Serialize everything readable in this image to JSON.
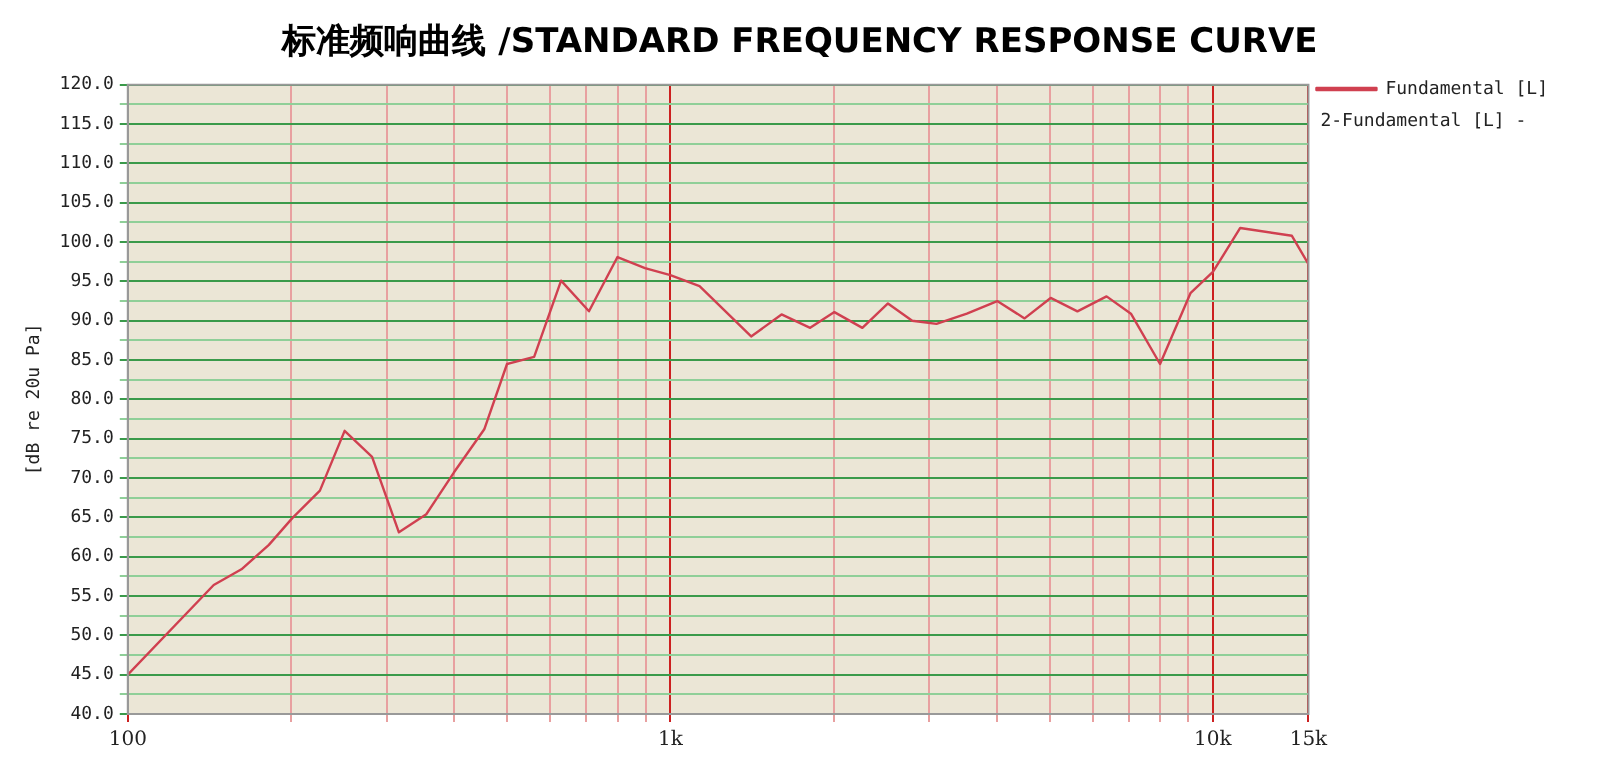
{
  "chart_data": {
    "type": "line",
    "title": "标准频响曲线 /STANDARD FREQUENCY RESPONSE CURVE",
    "ylabel": "[dB re 20u Pa]",
    "annotations": [
      "2-Fundamental [L] -"
    ],
    "log": "x",
    "grid": true,
    "legend": "top right",
    "marker": "none",
    "line_style": "solid",
    "xlim": [
      100,
      15000
    ],
    "xticks": [
      {
        "value": 100,
        "label": "100"
      },
      {
        "value": 200,
        "label": null
      },
      {
        "value": 300,
        "label": null
      },
      {
        "value": 400,
        "label": null
      },
      {
        "value": 500,
        "label": null
      },
      {
        "value": 600,
        "label": null
      },
      {
        "value": 700,
        "label": null
      },
      {
        "value": 800,
        "label": null
      },
      {
        "value": 900,
        "label": null
      },
      {
        "value": 1000,
        "label": "1k"
      },
      {
        "value": 2000,
        "label": null
      },
      {
        "value": 3000,
        "label": null
      },
      {
        "value": 4000,
        "label": null
      },
      {
        "value": 5000,
        "label": null
      },
      {
        "value": 6000,
        "label": null
      },
      {
        "value": 7000,
        "label": null
      },
      {
        "value": 8000,
        "label": null
      },
      {
        "value": 9000,
        "label": null
      },
      {
        "value": 10000,
        "label": "10k"
      },
      {
        "value": 15000,
        "label": "15k"
      }
    ],
    "ylim": [
      40,
      120
    ],
    "yticks": [
      {
        "value": 40,
        "label": "40.0"
      },
      {
        "value": 42.5,
        "label": null
      },
      {
        "value": 45,
        "label": "45.0"
      },
      {
        "value": 47.5,
        "label": null
      },
      {
        "value": 50,
        "label": "50.0"
      },
      {
        "value": 52.5,
        "label": null
      },
      {
        "value": 55,
        "label": "55.0"
      },
      {
        "value": 57.5,
        "label": null
      },
      {
        "value": 60,
        "label": "60.0"
      },
      {
        "value": 62.5,
        "label": null
      },
      {
        "value": 65,
        "label": "65.0"
      },
      {
        "value": 67.5,
        "label": null
      },
      {
        "value": 70,
        "label": "70.0"
      },
      {
        "value": 72.5,
        "label": null
      },
      {
        "value": 75,
        "label": "75.0"
      },
      {
        "value": 77.5,
        "label": null
      },
      {
        "value": 80,
        "label": "80.0"
      },
      {
        "value": 82.5,
        "label": null
      },
      {
        "value": 85,
        "label": "85.0"
      },
      {
        "value": 87.5,
        "label": null
      },
      {
        "value": 90,
        "label": "90.0"
      },
      {
        "value": 92.5,
        "label": null
      },
      {
        "value": 95,
        "label": "95.0"
      },
      {
        "value": 97.5,
        "label": null
      },
      {
        "value": 100,
        "label": "100.0"
      },
      {
        "value": 102.5,
        "label": null
      },
      {
        "value": 105,
        "label": "105.0"
      },
      {
        "value": 107.5,
        "label": null
      },
      {
        "value": 110,
        "label": "110.0"
      },
      {
        "value": 112.5,
        "label": null
      },
      {
        "value": 115,
        "label": "115.0"
      },
      {
        "value": 117.5,
        "label": null
      },
      {
        "value": 120,
        "label": "120.0"
      }
    ],
    "x": [
      100,
      144,
      162,
      182,
      201,
      226,
      251,
      282,
      316,
      355,
      399,
      454,
      500,
      561,
      629,
      708,
      799,
      898,
      1000,
      1132,
      1409,
      1603,
      1810,
      2006,
      2259,
      2518,
      2791,
      3094,
      3520,
      4004,
      4497,
      5023,
      5627,
      6368,
      7062,
      7991,
      9091,
      10000,
      11229,
      13983,
      15000
    ],
    "series": [
      {
        "name": "Fundamental [L]",
        "color": "#d04050",
        "values": [
          45,
          56.4,
          58.4,
          61.5,
          64.9,
          68.4,
          76,
          72.7,
          63.1,
          65.4,
          70.7,
          76.2,
          84.5,
          85.4,
          95.1,
          91.2,
          98.1,
          96.7,
          95.8,
          94.4,
          88,
          90.8,
          89.1,
          91.1,
          89.1,
          92.2,
          90,
          89.6,
          90.9,
          92.5,
          90.3,
          92.9,
          91.2,
          93.1,
          90.9,
          84.5,
          93.5,
          96.2,
          101.8,
          100.8,
          97.2
        ]
      }
    ]
  }
}
